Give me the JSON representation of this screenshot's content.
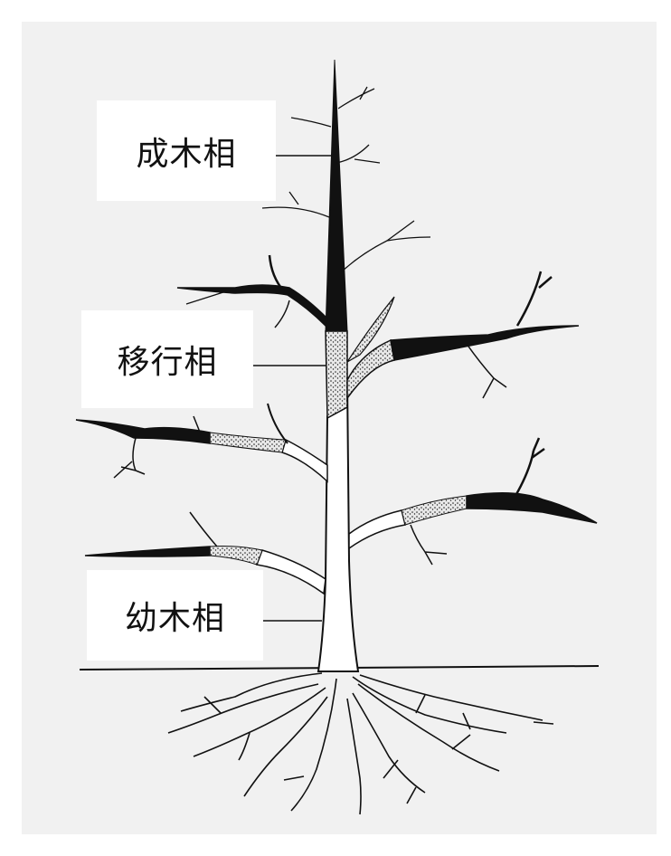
{
  "labels": {
    "mature": "成木相",
    "transition": "移行相",
    "juvenile": "幼木相"
  },
  "colors": {
    "background": "#f1f1f1",
    "mature_phase": "#111111",
    "transition_phase": "stippled-gray",
    "juvenile_phase": "#ffffff"
  }
}
